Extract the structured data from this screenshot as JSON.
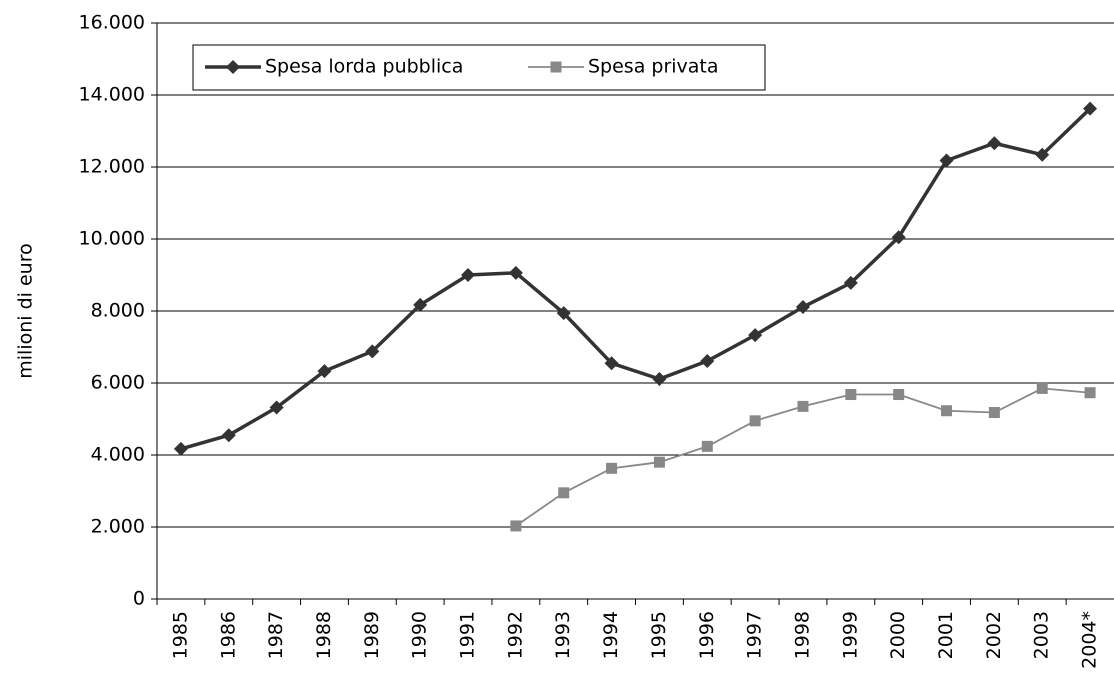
{
  "chart_data": {
    "type": "line",
    "y_label": "milioni di euro",
    "categories": [
      "1985",
      "1986",
      "1987",
      "1988",
      "1989",
      "1990",
      "1991",
      "1992",
      "1993",
      "1994",
      "1995",
      "1996",
      "1997",
      "1998",
      "1999",
      "2000",
      "2001",
      "2002",
      "2003",
      "2004*"
    ],
    "series": [
      {
        "name": "Spesa lorda pubblica",
        "color": "#333333",
        "marker": "diamond",
        "values": [
          4170,
          4550,
          5320,
          6330,
          6880,
          8170,
          9000,
          9060,
          7940,
          6550,
          6110,
          6610,
          7330,
          8110,
          8780,
          10050,
          12180,
          12660,
          12340,
          13620
        ]
      },
      {
        "name": "Spesa privata",
        "color": "#888888",
        "marker": "square",
        "values": [
          null,
          null,
          null,
          null,
          null,
          null,
          null,
          2030,
          2950,
          3630,
          3800,
          4240,
          4950,
          5350,
          5680,
          5680,
          5230,
          5180,
          5850,
          5730
        ]
      }
    ],
    "ylim": [
      0,
      16000
    ],
    "yticks": [
      0,
      {
        "value": 2000,
        "label": "2.000"
      },
      {
        "value": 4000,
        "label": "4.000"
      },
      {
        "value": 6000,
        "label": "6.000"
      },
      {
        "value": 8000,
        "label": "8.000"
      },
      {
        "value": 10000,
        "label": "10.000"
      },
      {
        "value": 12000,
        "label": "12.000"
      },
      {
        "value": 14000,
        "label": "14.000"
      },
      {
        "value": 16000,
        "label": "16.000"
      }
    ],
    "grid": true
  }
}
